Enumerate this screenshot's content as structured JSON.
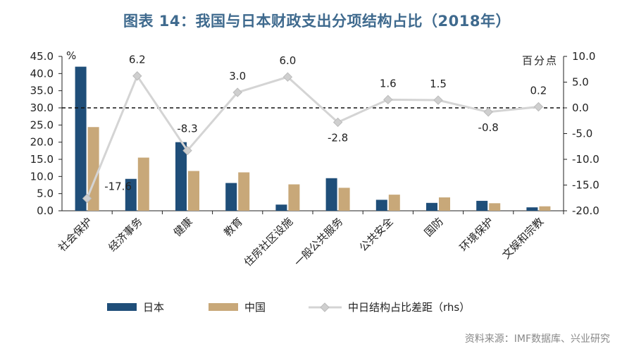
{
  "title": "图表 14：我国与日本财政支出分项结构占比（2018年）",
  "source": "资料来源：IMF数据库、兴业研究",
  "colors": {
    "japan": "#1f4e79",
    "china": "#c8a879",
    "diff": "#d4d4d4",
    "diff_marker": "#cfcfcf",
    "title": "#3f6a8e"
  },
  "chart_data": {
    "type": "bar",
    "categories": [
      "社会保护",
      "经济事务",
      "健康",
      "教育",
      "住房社区设施",
      "一般公共服务",
      "公共安全",
      "国防",
      "环境保护",
      "文娱和宗教"
    ],
    "series": [
      {
        "name": "日本",
        "type": "bar",
        "axis": "left",
        "values": [
          42.0,
          9.3,
          20.0,
          8.1,
          1.8,
          9.5,
          3.2,
          2.3,
          2.9,
          1.0
        ]
      },
      {
        "name": "中国",
        "type": "bar",
        "axis": "left",
        "values": [
          24.4,
          15.5,
          11.6,
          11.2,
          7.7,
          6.7,
          4.7,
          3.9,
          2.2,
          1.3
        ]
      },
      {
        "name": "中日结构占比差距（rhs）",
        "type": "line",
        "axis": "right",
        "values": [
          -17.6,
          6.2,
          -8.3,
          3.0,
          6.0,
          -2.8,
          1.6,
          1.5,
          -0.8,
          0.2
        ]
      }
    ],
    "data_labels": [
      "-17.6",
      "6.2",
      "-8.3",
      "3.0",
      "6.0",
      "-2.8",
      "1.6",
      "1.5",
      "-0.8",
      "0.2"
    ],
    "left_axis": {
      "unit": "%",
      "ylim": [
        0,
        45
      ],
      "ticks": [
        "0.0",
        "5.0",
        "10.0",
        "15.0",
        "20.0",
        "25.0",
        "30.0",
        "35.0",
        "40.0",
        "45.0"
      ]
    },
    "right_axis": {
      "unit": "百分点",
      "ylim": [
        -20,
        10
      ],
      "ticks": [
        "-20.0",
        "-15.0",
        "-10.0",
        "-5.0",
        "0.0",
        "5.0",
        "10.0"
      ]
    },
    "reference_line": {
      "axis": "right",
      "value": 0,
      "style": "dashed"
    },
    "legend": {
      "position": "bottom",
      "items": [
        "日本",
        "中国",
        "中日结构占比差距（rhs）"
      ]
    }
  }
}
